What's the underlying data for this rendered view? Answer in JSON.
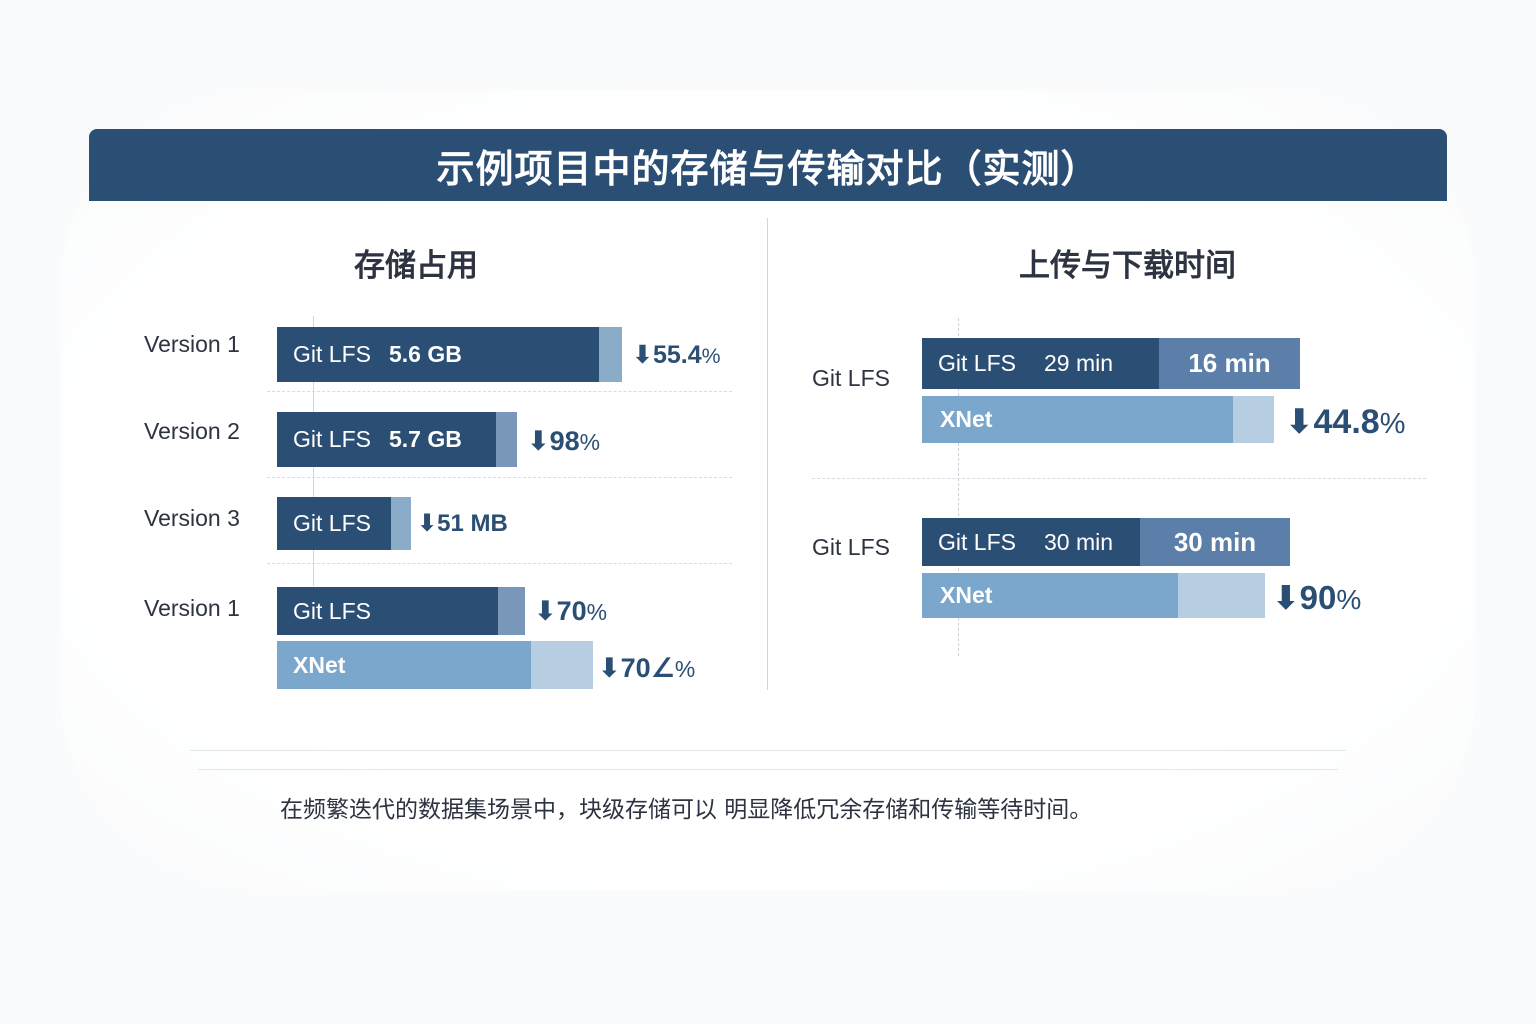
{
  "title": "示例项目中的存储与传输对比（实测）",
  "caption": "在频繁迭代的数据集场景中，块级存储可以 明显降低冗余存储和传输等待时间。",
  "chart_data": [
    {
      "type": "bar",
      "title": "存储占用",
      "rows": [
        {
          "label": "Version 1",
          "bars": [
            {
              "name": "Git LFS",
              "value_text": "5.6 GB"
            }
          ],
          "reduction": "55.4%"
        },
        {
          "label": "Version 2",
          "bars": [
            {
              "name": "Git LFS",
              "value_text": "5.7 GB"
            }
          ],
          "reduction": "98%"
        },
        {
          "label": "Version 3",
          "bars": [
            {
              "name": "Git LFS",
              "value_text": ""
            }
          ],
          "reduction": "51 MB"
        },
        {
          "label": "Version 1",
          "bars": [
            {
              "name": "Git LFS",
              "value_text": "",
              "reduction": "70%"
            },
            {
              "name": "XNet",
              "value_text": "",
              "reduction": "70∠%"
            }
          ]
        }
      ]
    },
    {
      "type": "bar",
      "title": "上传与下载时间",
      "groups": [
        {
          "label": "Git LFS",
          "bars": [
            {
              "name": "Git LFS",
              "value_text": "29 min",
              "secondary": "16 min"
            },
            {
              "name": "XNet"
            }
          ],
          "reduction": "44.8%"
        },
        {
          "label": "Git LFS",
          "bars": [
            {
              "name": "Git LFS",
              "value_text": "30 min",
              "secondary": "30 min"
            },
            {
              "name": "XNet"
            }
          ],
          "reduction": "90%"
        }
      ]
    }
  ],
  "colors": {
    "header": "#2b4e74",
    "git_lfs_bar": "#2b4e74",
    "secondary_bar": "#5b7fa8",
    "xnet_bar": "#7aa7cb",
    "xnet_tail": "#b6cde2"
  },
  "icons": {
    "reduction": "down-arrow-icon"
  },
  "arrow": "⬇"
}
